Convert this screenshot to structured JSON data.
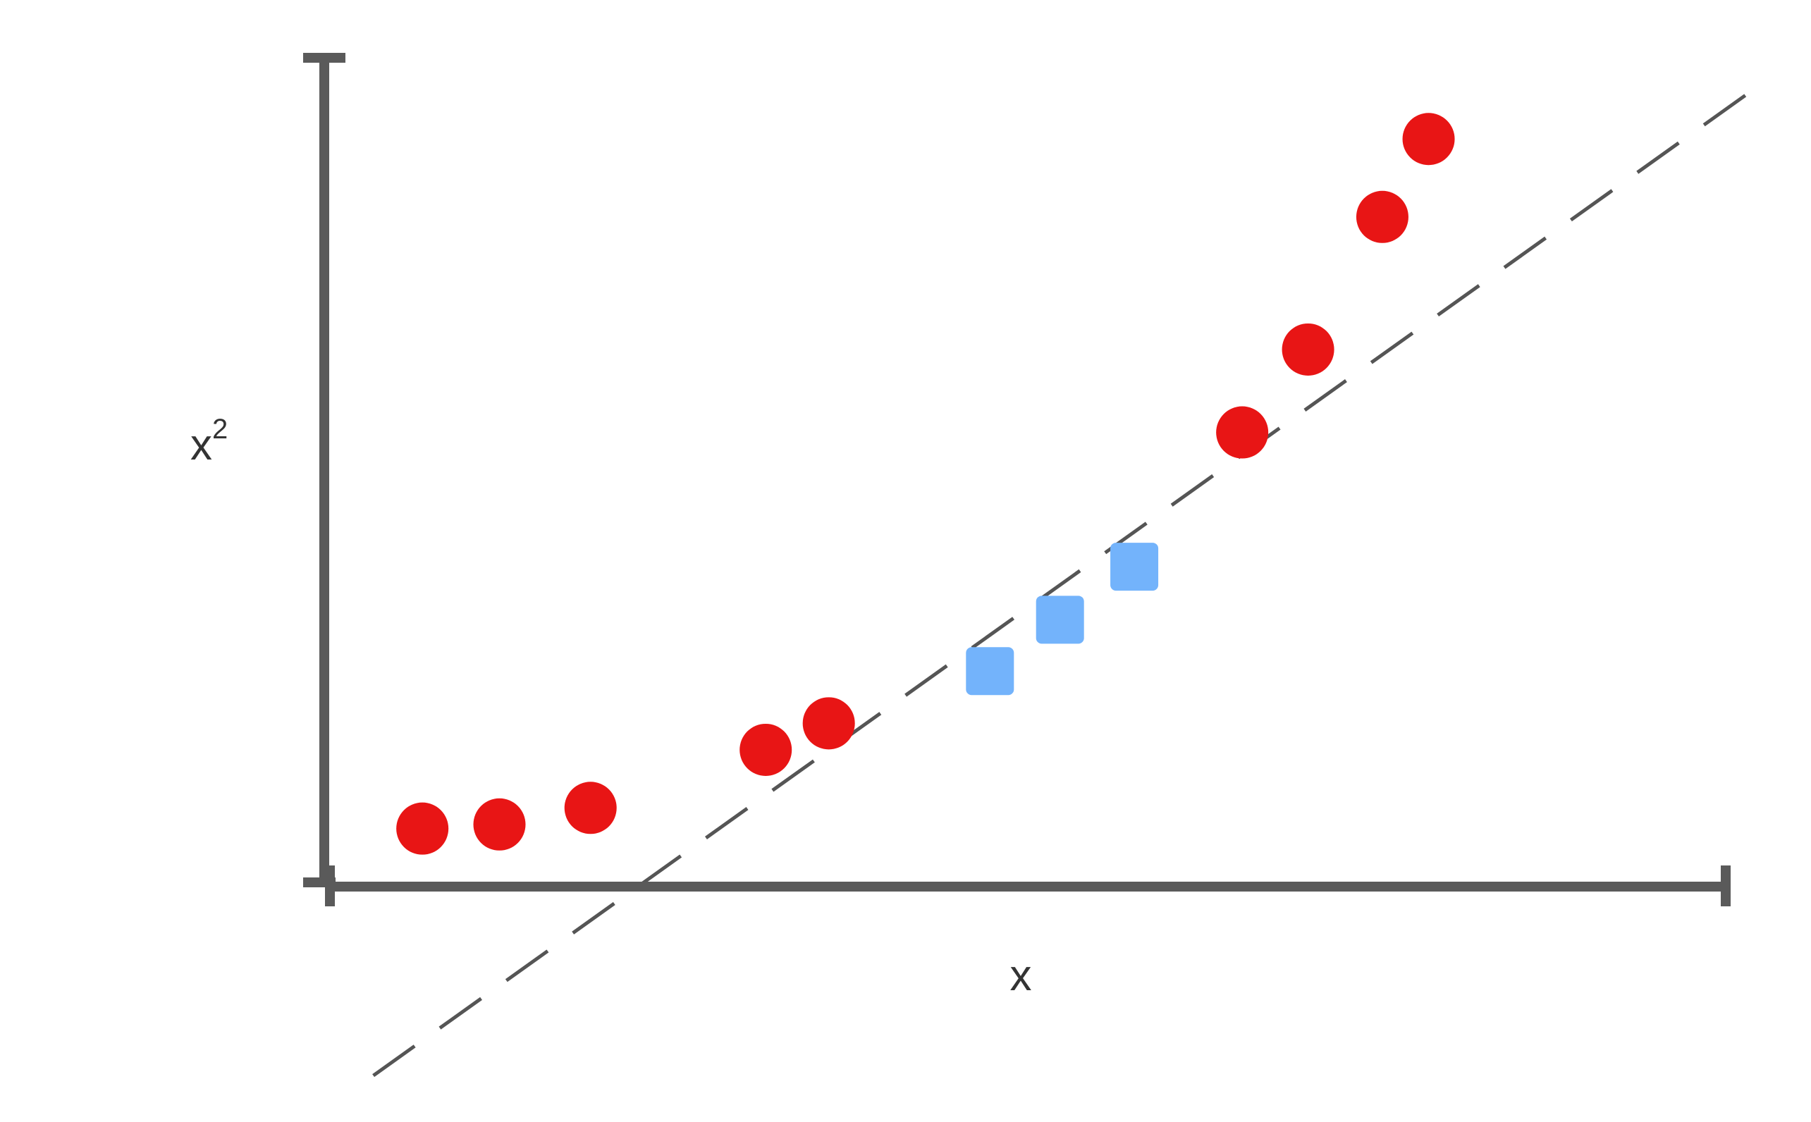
{
  "chart_data": {
    "type": "scatter",
    "title": "",
    "xlabel": "x",
    "ylabel": "x",
    "ylabel_superscript": "2",
    "xlim": [
      0,
      10
    ],
    "ylim": [
      0,
      10
    ],
    "grid": false,
    "ticks": false,
    "series": [
      {
        "marker": "circle",
        "color": "#e81515",
        "points": [
          {
            "x": 0.7,
            "y": 0.7
          },
          {
            "x": 1.25,
            "y": 0.75
          },
          {
            "x": 1.9,
            "y": 0.95
          },
          {
            "x": 3.15,
            "y": 1.65
          },
          {
            "x": 3.6,
            "y": 1.97
          },
          {
            "x": 6.55,
            "y": 5.48
          },
          {
            "x": 7.02,
            "y": 6.48
          },
          {
            "x": 7.55,
            "y": 8.08
          },
          {
            "x": 7.88,
            "y": 9.02
          }
        ]
      },
      {
        "marker": "square",
        "color": "#73b3fb",
        "points": [
          {
            "x": 4.75,
            "y": 2.6
          },
          {
            "x": 5.25,
            "y": 3.22
          },
          {
            "x": 5.78,
            "y": 3.86
          }
        ]
      }
    ],
    "reference_line": {
      "style": "dashed",
      "color": "#555555",
      "start": {
        "x": 0.35,
        "y": -2.28
      },
      "end": {
        "x": 10.3,
        "y": 9.74
      }
    }
  }
}
